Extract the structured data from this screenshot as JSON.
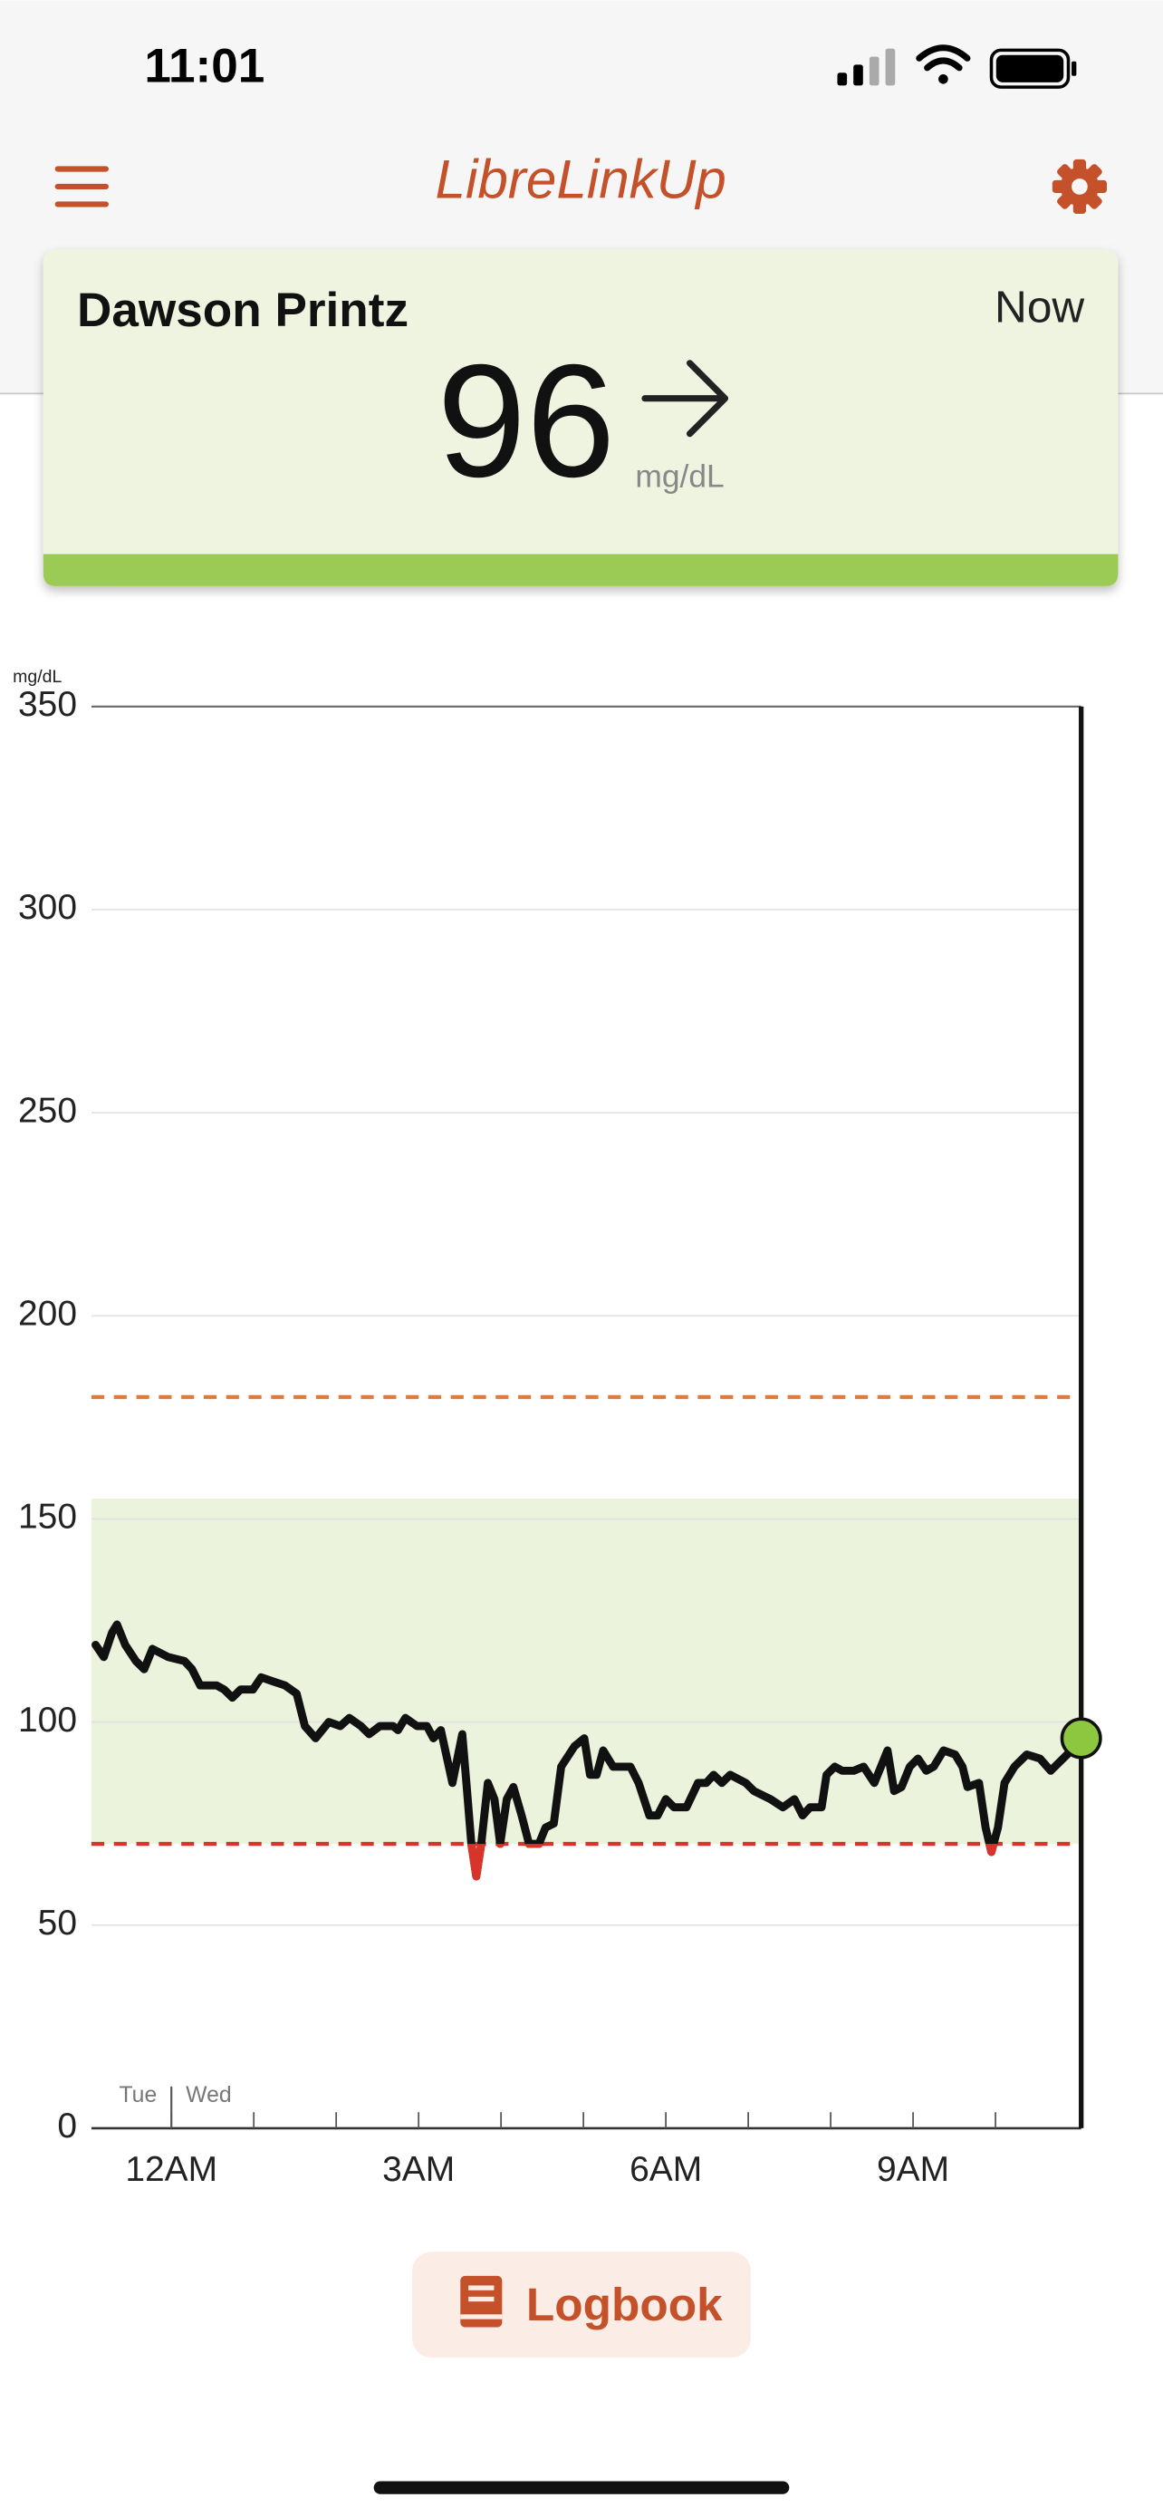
{
  "status_bar": {
    "time": "11:01"
  },
  "header": {
    "title": "LibreLinkUp"
  },
  "card": {
    "name": "Dawson Printz",
    "time_label": "Now",
    "reading": 96,
    "unit": "mg/dL"
  },
  "chart_data": {
    "type": "line",
    "y_axis_label": "mg/dL",
    "x": [
      -0.92,
      -0.82,
      -0.72,
      -0.66,
      -0.56,
      -0.43,
      -0.33,
      -0.23,
      -0.04,
      0.16,
      0.25,
      0.35,
      0.55,
      0.64,
      0.74,
      0.84,
      0.99,
      1.09,
      1.23,
      1.38,
      1.52,
      1.62,
      1.75,
      1.91,
      2.05,
      2.16,
      2.3,
      2.4,
      2.53,
      2.69,
      2.75,
      2.84,
      2.98,
      3.1,
      3.18,
      3.27,
      3.41,
      3.47,
      3.53,
      3.58,
      3.64,
      3.7,
      3.76,
      3.84,
      3.92,
      3.99,
      4.07,
      4.15,
      4.25,
      4.34,
      4.46,
      4.54,
      4.64,
      4.73,
      4.89,
      5.01,
      5.08,
      5.16,
      5.24,
      5.36,
      5.47,
      5.57,
      5.67,
      5.8,
      5.9,
      6.0,
      6.1,
      6.25,
      6.39,
      6.49,
      6.58,
      6.68,
      6.78,
      6.97,
      7.07,
      7.27,
      7.42,
      7.56,
      7.66,
      7.75,
      7.89,
      7.95,
      8.05,
      8.14,
      8.28,
      8.4,
      8.53,
      8.69,
      8.77,
      8.86,
      8.96,
      9.06,
      9.16,
      9.25,
      9.37,
      9.51,
      9.6,
      9.66,
      9.8,
      9.88,
      9.95,
      10.03,
      10.11,
      10.23,
      10.38,
      10.54,
      10.67,
      10.87,
      11.04
    ],
    "values": [
      119,
      116,
      122,
      124,
      119,
      115,
      113,
      118,
      116,
      115,
      113,
      109,
      109,
      108,
      106,
      108,
      108,
      111,
      110,
      109,
      107,
      99,
      96,
      100,
      99,
      101,
      99,
      97,
      99,
      99,
      98,
      101,
      99,
      99,
      96,
      98,
      85,
      91,
      97,
      85,
      70,
      62,
      70,
      85,
      81,
      70,
      81,
      84,
      77,
      70,
      70,
      74,
      75,
      89,
      94,
      96,
      87,
      87,
      93,
      89,
      89,
      89,
      85,
      77,
      77,
      81,
      79,
      79,
      85,
      85,
      87,
      85,
      87,
      85,
      83,
      81,
      79,
      81,
      77,
      79,
      79,
      87,
      89,
      88,
      88,
      89,
      85,
      93,
      83,
      84,
      89,
      91,
      88,
      89,
      93,
      92,
      89,
      84,
      85,
      74,
      68,
      74,
      85,
      89,
      92,
      91,
      88,
      92,
      96
    ],
    "xlim": [
      -0.97,
      11.04
    ],
    "xticks": [
      {
        "value": 0,
        "label": "12AM"
      },
      {
        "value": 3,
        "label": "3AM"
      },
      {
        "value": 6,
        "label": "6AM"
      },
      {
        "value": 9,
        "label": "9AM"
      }
    ],
    "xminor_ticks": [
      1,
      2,
      4,
      5,
      7,
      8,
      10
    ],
    "ylim": [
      0,
      350
    ],
    "yticks": [
      0,
      50,
      100,
      150,
      200,
      250,
      300,
      350
    ],
    "grid": true,
    "target_range": [
      70,
      155
    ],
    "high_threshold": 180,
    "low_threshold": 70,
    "day_divider": {
      "x": 0,
      "before": "Tue",
      "after": "Wed"
    },
    "line_color": "#111111",
    "low_color": "#d9342b",
    "high_line_color": "#e07b39",
    "range_color": "#ebf3dc",
    "current_dot_color": "#8dc63f"
  },
  "logbook": {
    "label": "Logbook"
  }
}
